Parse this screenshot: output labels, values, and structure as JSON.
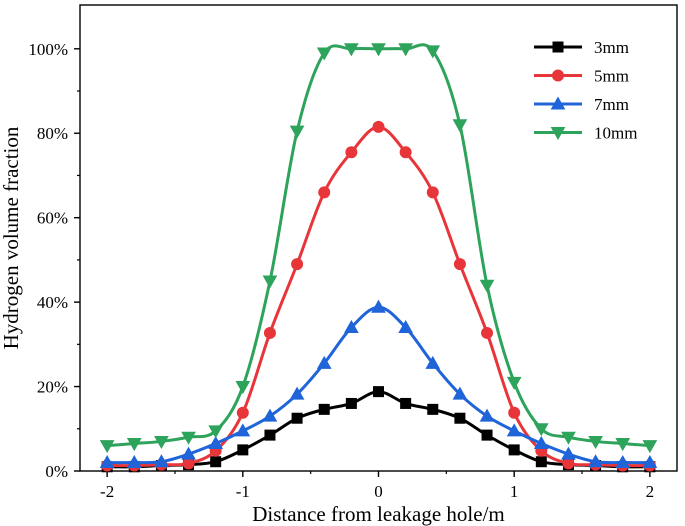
{
  "chart_data": {
    "type": "line",
    "title": "",
    "xlabel": "Distance from leakage hole/m",
    "ylabel": "Hydrogen volume fraction",
    "xlim": [
      -2.2,
      2.2
    ],
    "ylim": [
      0,
      1.0
    ],
    "xticks": [
      -2,
      -1,
      0,
      1,
      2
    ],
    "xtick_labels": [
      "-2",
      "-1",
      "0",
      "1",
      "2"
    ],
    "yticks": [
      0,
      0.2,
      0.4,
      0.6,
      0.8,
      1.0
    ],
    "ytick_labels": [
      "0%",
      "20%",
      "40%",
      "60%",
      "80%",
      "100%"
    ],
    "grid": false,
    "legend_position": "top-right",
    "x": [
      -2,
      -1.8,
      -1.6,
      -1.4,
      -1.2,
      -1,
      -0.8,
      -0.6,
      -0.4,
      -0.2,
      0,
      0.2,
      0.4,
      0.6,
      0.8,
      1,
      1.2,
      1.4,
      1.6,
      1.8,
      2
    ],
    "series": [
      {
        "name": "3mm",
        "color": "#000000",
        "marker": "square",
        "values": [
          0.01,
          0.01,
          0.013,
          0.015,
          0.022,
          0.05,
          0.085,
          0.125,
          0.146,
          0.16,
          0.188,
          0.16,
          0.146,
          0.125,
          0.085,
          0.05,
          0.022,
          0.015,
          0.013,
          0.01,
          0.01
        ]
      },
      {
        "name": "5mm",
        "color": "#e8353a",
        "marker": "circle",
        "values": [
          0.013,
          0.013,
          0.015,
          0.018,
          0.048,
          0.138,
          0.327,
          0.49,
          0.66,
          0.755,
          0.815,
          0.755,
          0.66,
          0.49,
          0.327,
          0.138,
          0.048,
          0.018,
          0.015,
          0.013,
          0.013
        ]
      },
      {
        "name": "7mm",
        "color": "#1f64d8",
        "marker": "triangle-up",
        "values": [
          0.02,
          0.02,
          0.022,
          0.04,
          0.065,
          0.095,
          0.13,
          0.182,
          0.255,
          0.34,
          0.388,
          0.34,
          0.255,
          0.182,
          0.13,
          0.095,
          0.065,
          0.04,
          0.022,
          0.02,
          0.02
        ]
      },
      {
        "name": "10mm",
        "color": "#2ea35b",
        "marker": "triangle-down",
        "values": [
          0.06,
          0.065,
          0.07,
          0.08,
          0.095,
          0.2,
          0.45,
          0.805,
          0.99,
          1.0,
          1.0,
          1.0,
          0.995,
          0.82,
          0.44,
          0.21,
          0.1,
          0.08,
          0.07,
          0.065,
          0.06
        ]
      }
    ]
  }
}
